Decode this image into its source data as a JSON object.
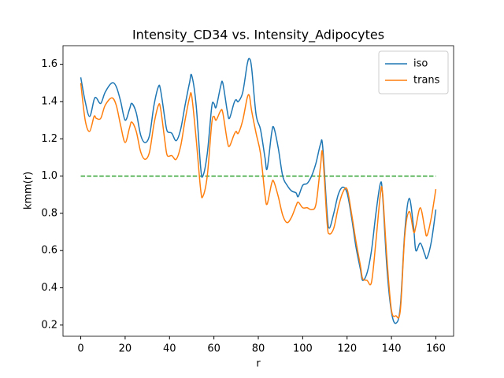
{
  "chart_data": {
    "type": "line",
    "title": "Intensity_CD34 vs. Intensity_Adipocytes",
    "x_label": "r",
    "y_label": "kmm(r)",
    "x": [
      0,
      2,
      4,
      6,
      7,
      9,
      11,
      14,
      16,
      18,
      20,
      22,
      23,
      25,
      27,
      29,
      31,
      33,
      35,
      36,
      38,
      39,
      41,
      43,
      45,
      47,
      49,
      50,
      52,
      54,
      55,
      57,
      59,
      60,
      61,
      63,
      64,
      66,
      67,
      69,
      70,
      71,
      73,
      75,
      76,
      77,
      79,
      81,
      83,
      84,
      86,
      87,
      89,
      91,
      93,
      95,
      97,
      98,
      100,
      102,
      104,
      106,
      108,
      109,
      111,
      112,
      114,
      116,
      118,
      120,
      122,
      124,
      126,
      127,
      129,
      131,
      133,
      135,
      136,
      138,
      140,
      142,
      144,
      146,
      148,
      150,
      151,
      153,
      155,
      156,
      158,
      160
    ],
    "series": [
      {
        "name": "iso",
        "color": "#1f77b4",
        "values": [
          1.53,
          1.4,
          1.32,
          1.41,
          1.42,
          1.39,
          1.45,
          1.5,
          1.48,
          1.4,
          1.3,
          1.36,
          1.39,
          1.34,
          1.22,
          1.18,
          1.22,
          1.38,
          1.48,
          1.46,
          1.3,
          1.24,
          1.23,
          1.19,
          1.25,
          1.38,
          1.5,
          1.54,
          1.38,
          1.05,
          1.0,
          1.12,
          1.37,
          1.39,
          1.37,
          1.48,
          1.5,
          1.35,
          1.31,
          1.39,
          1.41,
          1.4,
          1.45,
          1.6,
          1.63,
          1.58,
          1.33,
          1.25,
          1.1,
          1.04,
          1.23,
          1.26,
          1.15,
          1.0,
          0.95,
          0.92,
          0.91,
          0.89,
          0.95,
          0.96,
          1.0,
          1.07,
          1.17,
          1.16,
          0.8,
          0.72,
          0.8,
          0.9,
          0.94,
          0.91,
          0.78,
          0.62,
          0.5,
          0.44,
          0.48,
          0.6,
          0.8,
          0.96,
          0.9,
          0.5,
          0.27,
          0.21,
          0.3,
          0.7,
          0.88,
          0.72,
          0.6,
          0.64,
          0.58,
          0.56,
          0.65,
          0.82
        ]
      },
      {
        "name": "trans",
        "color": "#ff7f0e",
        "values": [
          1.5,
          1.3,
          1.24,
          1.32,
          1.31,
          1.31,
          1.38,
          1.42,
          1.38,
          1.27,
          1.18,
          1.26,
          1.29,
          1.24,
          1.13,
          1.09,
          1.13,
          1.28,
          1.38,
          1.36,
          1.18,
          1.11,
          1.11,
          1.09,
          1.16,
          1.3,
          1.42,
          1.43,
          1.2,
          0.93,
          0.89,
          1.0,
          1.28,
          1.32,
          1.3,
          1.35,
          1.34,
          1.19,
          1.16,
          1.22,
          1.24,
          1.23,
          1.3,
          1.42,
          1.43,
          1.35,
          1.23,
          1.12,
          0.9,
          0.85,
          0.96,
          0.97,
          0.89,
          0.79,
          0.75,
          0.78,
          0.84,
          0.86,
          0.83,
          0.83,
          0.82,
          0.85,
          1.05,
          1.12,
          0.75,
          0.69,
          0.72,
          0.83,
          0.91,
          0.93,
          0.8,
          0.65,
          0.52,
          0.45,
          0.44,
          0.43,
          0.65,
          0.9,
          0.91,
          0.55,
          0.28,
          0.25,
          0.28,
          0.68,
          0.81,
          0.7,
          0.73,
          0.83,
          0.72,
          0.68,
          0.78,
          0.93
        ]
      }
    ],
    "reference_line": {
      "value": 1.0,
      "xrange": [
        0,
        160
      ],
      "color": "#2ca02c"
    },
    "xlim": [
      -8,
      168
    ],
    "ylim": [
      0.14,
      1.7
    ],
    "xticks": [
      0,
      20,
      40,
      60,
      80,
      100,
      120,
      140,
      160
    ],
    "yticks": [
      0.2,
      0.4,
      0.6,
      0.8,
      {
        "value": 1,
        "label": "1.0"
      },
      1.2,
      1.4,
      1.6
    ],
    "legend": "upper right"
  }
}
